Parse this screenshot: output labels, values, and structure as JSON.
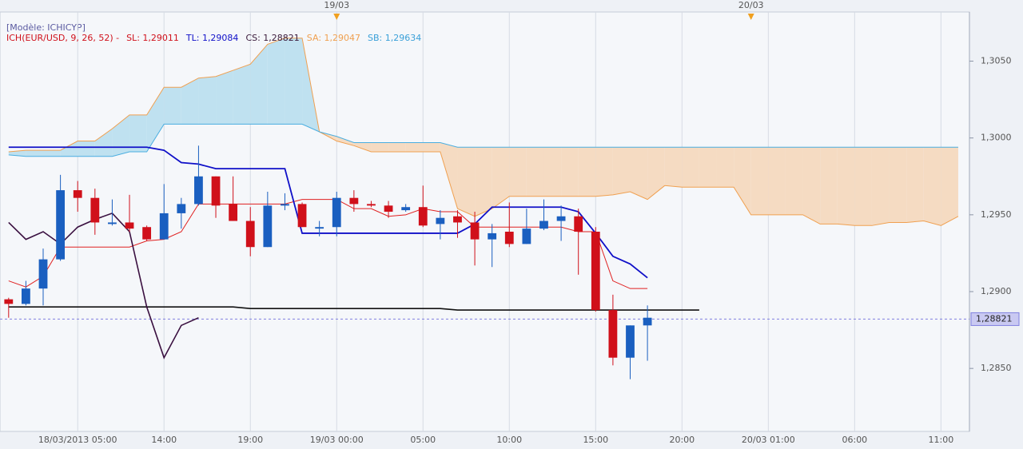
{
  "chart_data": {
    "type": "candlestick",
    "model_label": "[Modèle: ICHICYP]",
    "legend": [
      {
        "text": "ICH(EUR/USD, 9, 26, 52) -",
        "color": "#d0101a"
      },
      {
        "text": "SL: 1,29011",
        "color": "#d0101a"
      },
      {
        "text": "TL: 1,29084",
        "color": "#1010c8"
      },
      {
        "text": "CS: 1,28821",
        "color": "#3a1a3a"
      },
      {
        "text": "SA: 1,29047",
        "color": "#f0a050"
      },
      {
        "text": "SB: 1,29634",
        "color": "#3aa0d8"
      }
    ],
    "candles": {
      "up_color": "#1a5fc0",
      "down_color": "#d0101a",
      "open": [
        1.2895,
        1.2892,
        1.2902,
        1.2921,
        1.2966,
        1.2961,
        1.2944,
        1.2945,
        1.2942,
        1.2934,
        1.2951,
        1.2957,
        1.2975,
        1.2957,
        1.2946,
        1.2929,
        1.2956,
        1.2957,
        1.2941,
        1.2942,
        1.2961,
        1.2957,
        1.2956,
        1.2953,
        1.2955,
        1.2944,
        1.2949,
        1.2945,
        1.2934,
        1.2939,
        1.2931,
        1.2941,
        1.2946,
        1.2949,
        1.2939,
        1.2888,
        1.2857,
        1.2878
      ],
      "high": [
        1.2896,
        1.2907,
        1.2928,
        1.2976,
        1.2972,
        1.2967,
        1.296,
        1.2963,
        1.2943,
        1.297,
        1.2961,
        1.2995,
        1.2975,
        1.2975,
        1.2955,
        1.2965,
        1.2964,
        1.2958,
        1.2946,
        1.2965,
        1.2966,
        1.2959,
        1.2959,
        1.2957,
        1.2969,
        1.2953,
        1.2953,
        1.2952,
        1.2944,
        1.2958,
        1.2954,
        1.296,
        1.2956,
        1.2954,
        1.2942,
        1.2898,
        1.2878,
        1.2891
      ],
      "low": [
        1.2883,
        1.2891,
        1.2891,
        1.292,
        1.2952,
        1.2937,
        1.2943,
        1.2939,
        1.2933,
        1.2934,
        1.2941,
        1.2956,
        1.2948,
        1.2946,
        1.2923,
        1.2929,
        1.2953,
        1.2942,
        1.2936,
        1.2936,
        1.2952,
        1.2955,
        1.2948,
        1.2952,
        1.2942,
        1.2934,
        1.2935,
        1.2917,
        1.2916,
        1.2929,
        1.2931,
        1.294,
        1.2933,
        1.2911,
        1.2887,
        1.2852,
        1.2843,
        1.2855
      ],
      "close": [
        1.2892,
        1.2902,
        1.2921,
        1.2966,
        1.2961,
        1.2945,
        1.2945,
        1.2941,
        1.2934,
        1.2951,
        1.2957,
        1.2975,
        1.2956,
        1.2946,
        1.2929,
        1.2956,
        1.2957,
        1.2942,
        1.2942,
        1.2961,
        1.2957,
        1.2956,
        1.2952,
        1.2955,
        1.2943,
        1.2948,
        1.2945,
        1.2934,
        1.2938,
        1.2931,
        1.2941,
        1.2946,
        1.2949,
        1.2939,
        1.2888,
        1.2857,
        1.2878,
        1.2883
      ]
    },
    "cloud": {
      "up_fill": "#bfe1f0",
      "down_fill": "#f5dbc2",
      "a": {
        "color": "#f0a050",
        "values": [
          1.2991,
          1.2992,
          1.2992,
          1.2992,
          1.2998,
          1.2998,
          1.3006,
          1.3015,
          1.3015,
          1.3033,
          1.3033,
          1.3039,
          1.304,
          1.3044,
          1.3048,
          1.3061,
          1.3065,
          1.3065,
          1.3004,
          1.2998,
          1.2995,
          1.2991,
          1.2991,
          1.2991,
          1.2991,
          1.2991,
          1.2954,
          1.2949,
          1.2954,
          1.2962,
          1.2962,
          1.2962,
          1.2962,
          1.2962,
          1.2962,
          1.2963,
          1.2965,
          1.296,
          1.2969,
          1.2968,
          1.2968,
          1.2968,
          1.2968,
          1.295,
          1.295,
          1.295,
          1.295,
          1.2944,
          1.2944,
          1.2943,
          1.2943,
          1.2945,
          1.2945,
          1.2946,
          1.2943,
          1.2949
        ]
      },
      "b": {
        "color": "#4aaee0",
        "values": [
          1.2989,
          1.2988,
          1.2988,
          1.2988,
          1.2988,
          1.2988,
          1.2988,
          1.2991,
          1.2991,
          1.3009,
          1.3009,
          1.3009,
          1.3009,
          1.3009,
          1.3009,
          1.3009,
          1.3009,
          1.3009,
          1.3004,
          1.3001,
          1.2997,
          1.2997,
          1.2997,
          1.2997,
          1.2997,
          1.2997,
          1.2994,
          1.2994,
          1.2994,
          1.2994,
          1.2994,
          1.2994,
          1.2994,
          1.2994,
          1.2994,
          1.2994,
          1.2994,
          1.2994,
          1.2994,
          1.2994,
          1.2994,
          1.2994,
          1.2994,
          1.2994,
          1.2994,
          1.2994,
          1.2994,
          1.2994,
          1.2994,
          1.2994,
          1.2994,
          1.2994,
          1.2994,
          1.2994,
          1.2994,
          1.2994
        ]
      }
    },
    "series": [
      {
        "color": "#111111",
        "width": 1.6,
        "values": [
          1.289,
          1.289,
          1.289,
          1.289,
          1.289,
          1.289,
          1.289,
          1.289,
          1.289,
          1.289,
          1.289,
          1.289,
          1.289,
          1.289,
          1.2889,
          1.2889,
          1.2889,
          1.2889,
          1.2889,
          1.2889,
          1.2889,
          1.2889,
          1.2889,
          1.2889,
          1.2889,
          1.2889,
          1.2888,
          1.2888,
          1.2888,
          1.2888,
          1.2888,
          1.2888,
          1.2888,
          1.2888,
          1.2888,
          1.2888,
          1.2888,
          1.2888,
          1.2888,
          1.2888,
          1.2888
        ]
      },
      {
        "color": "#e02020",
        "width": 1,
        "values": [
          1.2907,
          1.2903,
          1.291,
          1.2929,
          1.2929,
          1.2929,
          1.2929,
          1.2929,
          1.2933,
          1.2934,
          1.2939,
          1.2957,
          1.2957,
          1.2957,
          1.2957,
          1.2957,
          1.2957,
          1.296,
          1.296,
          1.296,
          1.2954,
          1.2954,
          1.2949,
          1.295,
          1.2954,
          1.2952,
          1.2952,
          1.2942,
          1.2942,
          1.2942,
          1.2942,
          1.2942,
          1.2942,
          1.2939,
          1.2939,
          1.2907,
          1.2902,
          1.2902
        ]
      },
      {
        "color": "#1010c8",
        "width": 1.8,
        "values": [
          1.2994,
          1.2994,
          1.2994,
          1.2994,
          1.2994,
          1.2994,
          1.2994,
          1.2994,
          1.2994,
          1.2992,
          1.2984,
          1.2983,
          1.298,
          1.298,
          1.298,
          1.298,
          1.298,
          1.2938,
          1.2938,
          1.2938,
          1.2938,
          1.2938,
          1.2938,
          1.2938,
          1.2938,
          1.2938,
          1.2938,
          1.2944,
          1.2955,
          1.2955,
          1.2955,
          1.2955,
          1.2955,
          1.2952,
          1.2938,
          1.2923,
          1.2918,
          1.2909
        ]
      },
      {
        "color": "#3a1040",
        "width": 1.6,
        "values": [
          1.2945,
          1.2934,
          1.2939,
          1.2931,
          1.2942,
          1.2947,
          1.2951,
          1.2939,
          1.289,
          1.2857,
          1.2878,
          1.2883
        ]
      }
    ],
    "current": {
      "value": 1.28821,
      "label": "1,28821"
    },
    "xlim": [
      -0.5,
      55.65
    ],
    "ylim": [
      1.2809,
      1.3082
    ],
    "yticks": [
      {
        "value": 1.285,
        "label": "1,2850"
      },
      {
        "value": 1.29,
        "label": "1,2900"
      },
      {
        "value": 1.295,
        "label": "1,2950"
      },
      {
        "value": 1.3,
        "label": "1,3000"
      },
      {
        "value": 1.305,
        "label": "1,3050"
      }
    ],
    "xticks": [
      {
        "value": 4,
        "label": "18/03/2013 05:00"
      },
      {
        "value": 9,
        "label": "14:00"
      },
      {
        "value": 14,
        "label": "19:00"
      },
      {
        "value": 19,
        "label": "19/03 00:00"
      },
      {
        "value": 24,
        "label": "05:00"
      },
      {
        "value": 29,
        "label": "10:00"
      },
      {
        "value": 34,
        "label": "15:00"
      },
      {
        "value": 39,
        "label": "20:00"
      },
      {
        "value": 44,
        "label": "20/03 01:00"
      },
      {
        "value": 49,
        "label": "06:00"
      },
      {
        "value": 54,
        "label": "11:00"
      }
    ],
    "date_markers": [
      {
        "value": 19,
        "label": "19/03"
      },
      {
        "value": 43,
        "label": "20/03"
      }
    ],
    "grid": "x"
  }
}
